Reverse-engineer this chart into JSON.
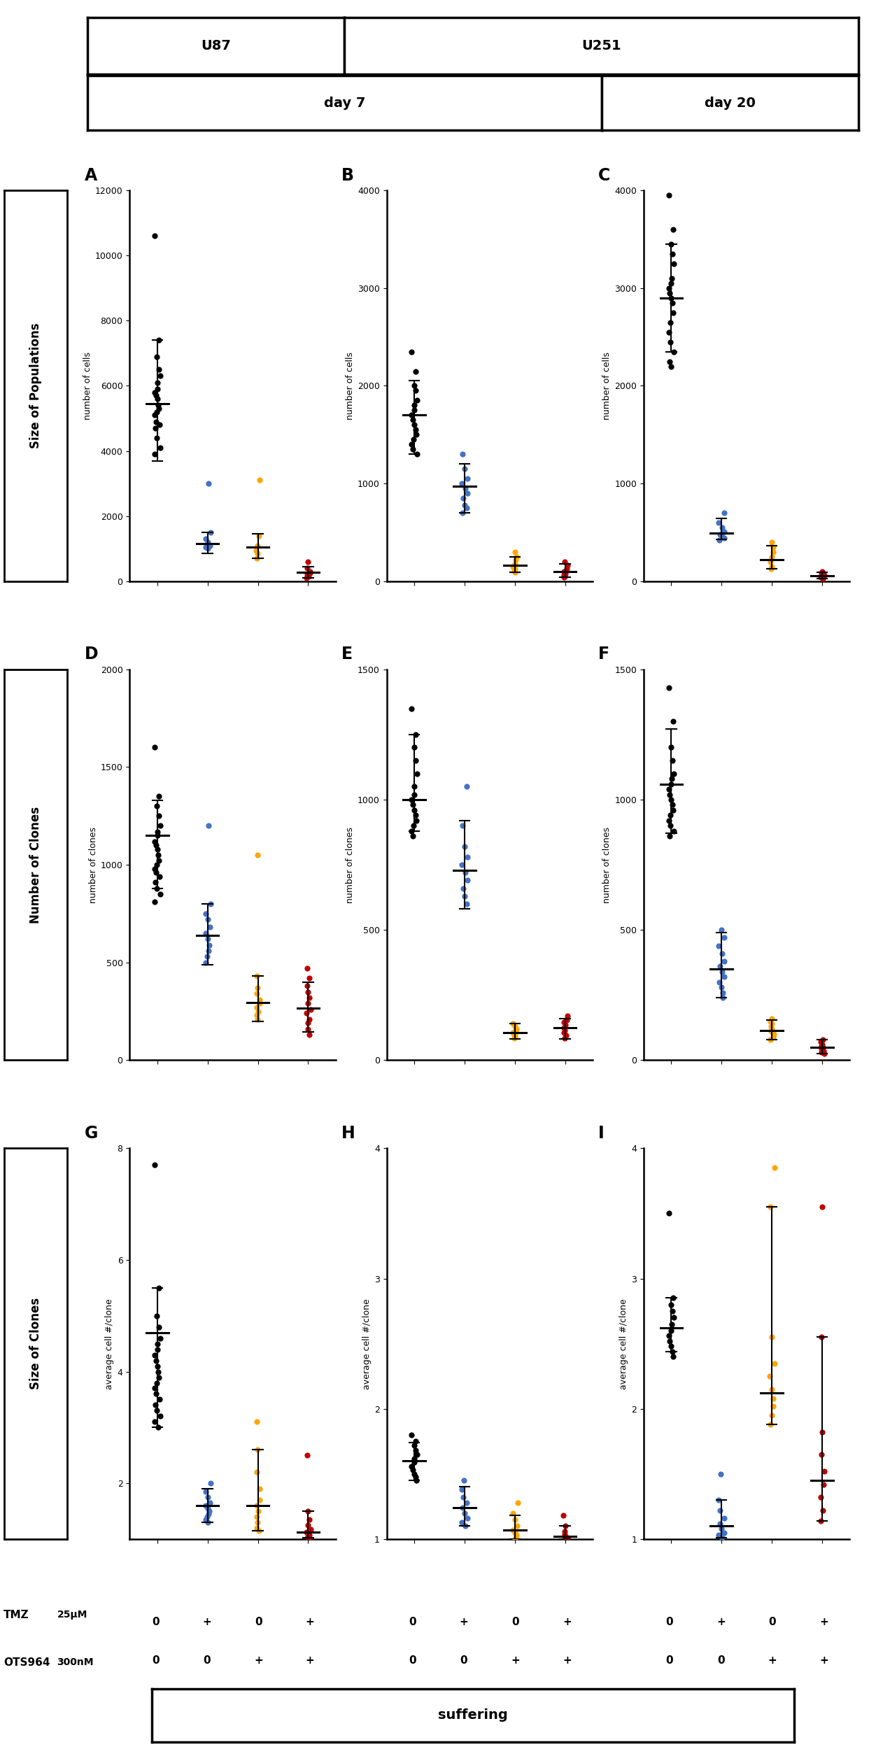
{
  "row_labels": [
    "Size of Populations",
    "Number of Clones",
    "Size of Clones"
  ],
  "colors": {
    "black": "#000000",
    "blue": "#4472C4",
    "orange": "#FFA500",
    "red": "#C00000"
  },
  "A": {
    "ylabel": "number of cells",
    "ylim": [
      0,
      12000
    ],
    "yticks": [
      0,
      2000,
      4000,
      6000,
      8000,
      10000,
      12000
    ],
    "groups": {
      "black": [
        10600,
        7400,
        6900,
        6500,
        6300,
        6100,
        5900,
        5800,
        5700,
        5600,
        5400,
        5300,
        5200,
        5100,
        4900,
        4800,
        4700,
        4400,
        4100,
        3900
      ],
      "blue": [
        3000,
        1500,
        1300,
        1200,
        1100,
        1050,
        1000
      ],
      "orange": [
        3100,
        1400,
        1100,
        950,
        850,
        700
      ],
      "red": [
        600,
        400,
        300,
        250,
        200,
        150,
        100
      ]
    },
    "median": {
      "black": 5450,
      "blue": 1150,
      "orange": 1050,
      "red": 280
    },
    "whisker_lo": {
      "black": 3700,
      "blue": 850,
      "orange": 700,
      "red": 100
    },
    "whisker_hi": {
      "black": 7400,
      "blue": 1500,
      "orange": 1450,
      "red": 450
    }
  },
  "B": {
    "ylabel": "number of cells",
    "ylim": [
      0,
      4000
    ],
    "yticks": [
      0,
      1000,
      2000,
      3000,
      4000
    ],
    "groups": {
      "black": [
        2350,
        2150,
        2000,
        1950,
        1850,
        1800,
        1750,
        1700,
        1650,
        1600,
        1550,
        1500,
        1450,
        1400,
        1350,
        1300
      ],
      "blue": [
        1300,
        1150,
        1050,
        1000,
        950,
        900,
        850,
        780,
        750,
        700
      ],
      "orange": [
        300,
        250,
        220,
        180,
        150,
        130,
        110,
        90
      ],
      "red": [
        200,
        160,
        130,
        100,
        80,
        60,
        50,
        40
      ]
    },
    "median": {
      "black": 1700,
      "blue": 970,
      "orange": 165,
      "red": 95
    },
    "whisker_lo": {
      "black": 1300,
      "blue": 700,
      "orange": 90,
      "red": 40
    },
    "whisker_hi": {
      "black": 2050,
      "blue": 1200,
      "orange": 250,
      "red": 180
    }
  },
  "C": {
    "ylabel": "number of cells",
    "ylim": [
      0,
      4000
    ],
    "yticks": [
      0,
      1000,
      2000,
      3000,
      4000
    ],
    "groups": {
      "black": [
        3950,
        3600,
        3450,
        3350,
        3250,
        3100,
        3050,
        3000,
        2950,
        2900,
        2850,
        2750,
        2650,
        2550,
        2450,
        2350,
        2250,
        2200
      ],
      "blue": [
        700,
        600,
        550,
        510,
        480,
        460,
        440,
        420
      ],
      "orange": [
        400,
        350,
        300,
        250,
        200,
        150,
        130
      ],
      "red": [
        100,
        80,
        60,
        50,
        40,
        30
      ]
    },
    "median": {
      "black": 2900,
      "blue": 490,
      "orange": 220,
      "red": 55
    },
    "whisker_lo": {
      "black": 2350,
      "blue": 430,
      "orange": 130,
      "red": 30
    },
    "whisker_hi": {
      "black": 3450,
      "blue": 640,
      "orange": 360,
      "red": 90
    }
  },
  "D": {
    "ylabel": "number of clones",
    "ylim": [
      0,
      2000
    ],
    "yticks": [
      0,
      500,
      1000,
      1500,
      2000
    ],
    "groups": {
      "black": [
        1600,
        1350,
        1300,
        1250,
        1200,
        1170,
        1150,
        1120,
        1100,
        1080,
        1050,
        1020,
        1000,
        980,
        960,
        940,
        910,
        880,
        850,
        810
      ],
      "blue": [
        1200,
        800,
        750,
        720,
        680,
        650,
        620,
        590,
        560,
        530,
        500
      ],
      "orange": [
        1050,
        430,
        370,
        340,
        310,
        290,
        270,
        250,
        230,
        210
      ],
      "red": [
        470,
        420,
        380,
        350,
        320,
        290,
        260,
        240,
        210,
        190,
        160,
        130
      ]
    },
    "median": {
      "black": 1150,
      "blue": 640,
      "orange": 295,
      "red": 265
    },
    "whisker_lo": {
      "black": 880,
      "blue": 490,
      "orange": 200,
      "red": 145
    },
    "whisker_hi": {
      "black": 1330,
      "blue": 800,
      "orange": 430,
      "red": 400
    }
  },
  "E": {
    "ylabel": "number of clones",
    "ylim": [
      0,
      1500
    ],
    "yticks": [
      0,
      500,
      1000,
      1500
    ],
    "groups": {
      "black": [
        1350,
        1250,
        1200,
        1150,
        1100,
        1050,
        1020,
        1000,
        980,
        960,
        940,
        920,
        900,
        880,
        860
      ],
      "blue": [
        1050,
        900,
        820,
        780,
        750,
        720,
        690,
        660,
        630,
        600
      ],
      "orange": [
        140,
        130,
        120,
        115,
        110,
        105,
        100,
        95,
        90,
        85
      ],
      "red": [
        170,
        155,
        145,
        135,
        125,
        115,
        105,
        95,
        85
      ]
    },
    "median": {
      "black": 1000,
      "blue": 730,
      "orange": 107,
      "red": 125
    },
    "whisker_lo": {
      "black": 880,
      "blue": 580,
      "orange": 82,
      "red": 82
    },
    "whisker_hi": {
      "black": 1250,
      "blue": 920,
      "orange": 140,
      "red": 160
    }
  },
  "F": {
    "ylabel": "number of clones",
    "ylim": [
      0,
      1500
    ],
    "yticks": [
      0,
      500,
      1000,
      1500
    ],
    "groups": {
      "black": [
        1430,
        1300,
        1200,
        1150,
        1100,
        1080,
        1060,
        1040,
        1020,
        1000,
        980,
        960,
        940,
        920,
        900,
        880,
        860
      ],
      "blue": [
        500,
        470,
        440,
        410,
        380,
        360,
        340,
        320,
        300,
        280,
        260,
        240
      ],
      "orange": [
        160,
        150,
        140,
        130,
        120,
        110,
        100,
        90,
        80
      ],
      "red": [
        80,
        70,
        60,
        55,
        50,
        45,
        40,
        35,
        30,
        25
      ]
    },
    "median": {
      "black": 1060,
      "blue": 350,
      "orange": 115,
      "red": 50
    },
    "whisker_lo": {
      "black": 870,
      "blue": 240,
      "orange": 80,
      "red": 25
    },
    "whisker_hi": {
      "black": 1270,
      "blue": 490,
      "orange": 155,
      "red": 78
    }
  },
  "G": {
    "ylabel": "average cell #/clone",
    "ylim": [
      1,
      8
    ],
    "yticks": [
      2,
      4,
      6,
      8
    ],
    "groups": {
      "black": [
        7.7,
        5.5,
        5.0,
        4.8,
        4.6,
        4.5,
        4.4,
        4.3,
        4.2,
        4.1,
        4.0,
        3.9,
        3.8,
        3.7,
        3.6,
        3.5,
        3.4,
        3.3,
        3.2,
        3.1,
        3.0
      ],
      "blue": [
        2.0,
        1.85,
        1.75,
        1.65,
        1.6,
        1.55,
        1.5,
        1.45,
        1.4,
        1.35,
        1.3
      ],
      "orange": [
        3.1,
        2.6,
        2.2,
        1.9,
        1.7,
        1.6,
        1.5,
        1.4,
        1.3,
        1.2,
        1.15
      ],
      "red": [
        2.5,
        1.5,
        1.35,
        1.25,
        1.18,
        1.12,
        1.08,
        1.05,
        1.02,
        1.01
      ]
    },
    "median": {
      "black": 4.7,
      "blue": 1.6,
      "orange": 1.6,
      "red": 1.13
    },
    "whisker_lo": {
      "black": 3.0,
      "blue": 1.3,
      "orange": 1.15,
      "red": 1.02
    },
    "whisker_hi": {
      "black": 5.5,
      "blue": 1.9,
      "orange": 2.6,
      "red": 1.5
    }
  },
  "H": {
    "ylabel": "average cell #/clone",
    "ylim": [
      1,
      4
    ],
    "yticks": [
      1,
      2,
      3,
      4
    ],
    "groups": {
      "black": [
        1.8,
        1.75,
        1.72,
        1.68,
        1.65,
        1.62,
        1.59,
        1.56,
        1.53,
        1.5,
        1.48,
        1.45
      ],
      "blue": [
        1.45,
        1.38,
        1.32,
        1.28,
        1.24,
        1.2,
        1.16,
        1.13,
        1.1
      ],
      "orange": [
        1.28,
        1.2,
        1.15,
        1.1,
        1.07,
        1.05,
        1.03,
        1.01,
        1.0
      ],
      "red": [
        1.18,
        1.1,
        1.06,
        1.04,
        1.02,
        1.01,
        1.0
      ]
    },
    "median": {
      "black": 1.6,
      "blue": 1.24,
      "orange": 1.07,
      "red": 1.02
    },
    "whisker_lo": {
      "black": 1.45,
      "blue": 1.1,
      "orange": 1.0,
      "red": 1.0
    },
    "whisker_hi": {
      "black": 1.74,
      "blue": 1.4,
      "orange": 1.18,
      "red": 1.1
    }
  },
  "I": {
    "ylabel": "average cell #/clone",
    "ylim": [
      1,
      4
    ],
    "yticks": [
      1,
      2,
      3,
      4
    ],
    "groups": {
      "black": [
        3.5,
        2.85,
        2.8,
        2.75,
        2.7,
        2.65,
        2.6,
        2.56,
        2.52,
        2.48,
        2.44,
        2.4
      ],
      "blue": [
        1.5,
        1.3,
        1.22,
        1.16,
        1.12,
        1.08,
        1.05,
        1.03,
        1.01
      ],
      "orange": [
        3.85,
        3.55,
        2.55,
        2.35,
        2.25,
        2.15,
        2.08,
        2.02,
        1.95,
        1.88
      ],
      "red": [
        3.55,
        2.55,
        1.82,
        1.65,
        1.52,
        1.42,
        1.32,
        1.22,
        1.14
      ]
    },
    "median": {
      "black": 2.62,
      "blue": 1.1,
      "orange": 2.12,
      "red": 1.45
    },
    "whisker_lo": {
      "black": 2.44,
      "blue": 1.01,
      "orange": 1.88,
      "red": 1.14
    },
    "whisker_hi": {
      "black": 2.85,
      "blue": 1.3,
      "orange": 3.55,
      "red": 2.55
    }
  }
}
